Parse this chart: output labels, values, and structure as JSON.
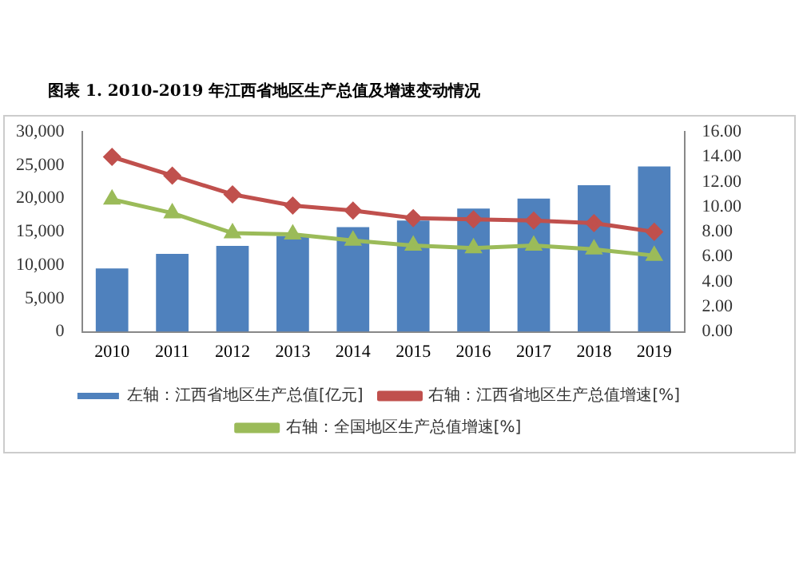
{
  "chart_data": {
    "type": "bar",
    "title": "图表 1. 2010-2019 年江西省地区生产总值及增速变动情况",
    "categories": [
      "2010",
      "2011",
      "2012",
      "2013",
      "2014",
      "2015",
      "2016",
      "2017",
      "2018",
      "2019"
    ],
    "series": [
      {
        "name": "左轴：江西省地区生产总值[亿元]",
        "color": "#4f81bd",
        "values": [
          9500,
          11700,
          12900,
          14400,
          15700,
          16700,
          18500,
          20000,
          22000,
          24800
        ]
      },
      {
        "name": "右轴：江西省地区生产总值增速[%]",
        "type": "line",
        "axis": "y2",
        "marker": "diamond",
        "color": "#c0504d",
        "values": [
          14.0,
          12.5,
          11.0,
          10.1,
          9.7,
          9.1,
          9.0,
          8.9,
          8.7,
          8.0
        ]
      },
      {
        "name": "右轴：全国地区生产总值增速[%]",
        "type": "line",
        "axis": "y2",
        "marker": "triangle",
        "color": "#9bbb59",
        "values": [
          10.6,
          9.5,
          7.9,
          7.8,
          7.3,
          6.9,
          6.7,
          6.9,
          6.6,
          6.1
        ]
      }
    ],
    "ylim": [
      0,
      30000
    ],
    "yticks": [
      {
        "value": 0,
        "label": "0"
      },
      {
        "value": 5000,
        "label": "5,000"
      },
      {
        "value": 10000,
        "label": "10,000"
      },
      {
        "value": 15000,
        "label": "15,000"
      },
      {
        "value": 20000,
        "label": "20,000"
      },
      {
        "value": 25000,
        "label": "25,000"
      },
      {
        "value": 30000,
        "label": "30,000"
      }
    ],
    "y2lim": [
      0,
      16
    ],
    "y2ticks": [
      {
        "value": 0,
        "label": "0.00"
      },
      {
        "value": 2,
        "label": "2.00"
      },
      {
        "value": 4,
        "label": "4.00"
      },
      {
        "value": 6,
        "label": "6.00"
      },
      {
        "value": 8,
        "label": "8.00"
      },
      {
        "value": 10,
        "label": "10.00"
      },
      {
        "value": 12,
        "label": "12.00"
      },
      {
        "value": 14,
        "label": "14.00"
      },
      {
        "value": 16,
        "label": "16.00"
      }
    ],
    "grid": false,
    "legend": "bottom"
  }
}
